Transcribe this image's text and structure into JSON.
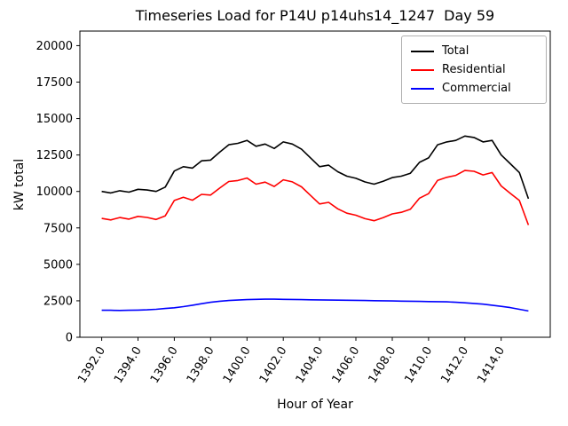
{
  "chart_data": {
    "type": "line",
    "title": "Timeseries Load for P14U p14uhs14_1247  Day 59",
    "xlabel": "Hour of Year",
    "ylabel": "kW total",
    "xlim": [
      1390.8,
      1416.7
    ],
    "ylim": [
      0,
      21000
    ],
    "xticks": [
      1392,
      1394,
      1396,
      1398,
      1400,
      1402,
      1404,
      1406,
      1408,
      1410,
      1412,
      1414
    ],
    "yticks": [
      0,
      2500,
      5000,
      7500,
      10000,
      12500,
      15000,
      17500,
      20000
    ],
    "grid": false,
    "legend_position": "upper right",
    "x": [
      1392.0,
      1392.5,
      1393.0,
      1393.5,
      1394.0,
      1394.5,
      1395.0,
      1395.5,
      1396.0,
      1396.5,
      1397.0,
      1397.5,
      1398.0,
      1398.5,
      1399.0,
      1399.5,
      1400.0,
      1400.5,
      1401.0,
      1401.5,
      1402.0,
      1402.5,
      1403.0,
      1403.5,
      1404.0,
      1404.5,
      1405.0,
      1405.5,
      1406.0,
      1406.5,
      1407.0,
      1407.5,
      1408.0,
      1408.5,
      1409.0,
      1409.5,
      1410.0,
      1410.5,
      1411.0,
      1411.5,
      1412.0,
      1412.5,
      1413.0,
      1413.5,
      1414.0,
      1414.5,
      1415.0,
      1415.5
    ],
    "series": [
      {
        "name": "Total",
        "color": "#000000",
        "values": [
          10000,
          9900,
          10050,
          9950,
          10150,
          10100,
          10000,
          10300,
          11400,
          11700,
          11600,
          12100,
          12150,
          12700,
          13200,
          13300,
          13500,
          13100,
          13250,
          12950,
          13400,
          13250,
          12900,
          12300,
          11700,
          11800,
          11350,
          11050,
          10900,
          10650,
          10500,
          10700,
          10950,
          11050,
          11250,
          12000,
          12300,
          13200,
          13400,
          13500,
          13800,
          13700,
          13400,
          13500,
          12500,
          11900,
          11300,
          9500
        ]
      },
      {
        "name": "Residential",
        "color": "#ff0000",
        "values": [
          8150,
          8050,
          8210,
          8100,
          8290,
          8220,
          8080,
          8330,
          9380,
          9600,
          9400,
          9800,
          9750,
          10230,
          10680,
          10750,
          10920,
          10500,
          10640,
          10340,
          10800,
          10660,
          10320,
          9730,
          9140,
          9250,
          8805,
          8510,
          8370,
          8130,
          7990,
          8200,
          8460,
          8570,
          8780,
          9540,
          9850,
          10760,
          10970,
          11100,
          11440,
          11380,
          11130,
          11300,
          10380,
          9870,
          9380,
          7700
        ]
      },
      {
        "name": "Commercial",
        "color": "#0000ff",
        "values": [
          1850,
          1850,
          1840,
          1850,
          1860,
          1880,
          1920,
          1970,
          2020,
          2100,
          2200,
          2300,
          2400,
          2470,
          2520,
          2550,
          2580,
          2600,
          2610,
          2610,
          2600,
          2590,
          2580,
          2570,
          2560,
          2550,
          2545,
          2540,
          2530,
          2520,
          2510,
          2500,
          2490,
          2480,
          2470,
          2460,
          2450,
          2440,
          2430,
          2400,
          2360,
          2320,
          2270,
          2200,
          2120,
          2030,
          1920,
          1800
        ]
      }
    ]
  }
}
